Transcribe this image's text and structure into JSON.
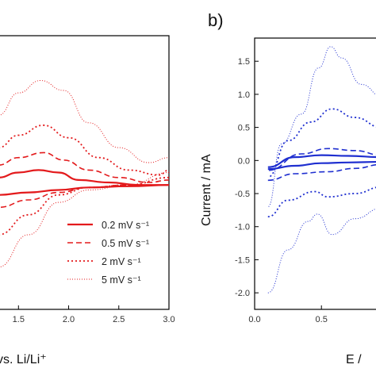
{
  "figure": {
    "panel_b_label": "b)"
  },
  "chart_data": [
    {
      "type": "line",
      "panel": "a",
      "color": "#e31a1c",
      "xlabel_visible_fragment": "vs. Li/Li⁺",
      "xlim": [
        1.3,
        3.0
      ],
      "ylim": [
        -0.5,
        0.6
      ],
      "x_ticks": [
        "1.5",
        "2.0",
        "2.5",
        "3.0"
      ],
      "legend": {
        "placement": "bottom-right",
        "entries": [
          {
            "label": "0.2 mV s⁻¹",
            "style": "solid"
          },
          {
            "label": "0.5 mV s⁻¹",
            "style": "dashed"
          },
          {
            "label": "2 mV s⁻¹",
            "style": "dotted"
          },
          {
            "label": "5 mV s⁻¹",
            "style": "fine-dotted"
          }
        ]
      },
      "series": [
        {
          "name": "0.2 mV s⁻¹",
          "style": "solid",
          "x": [
            1.3,
            1.5,
            1.7,
            1.9,
            2.1,
            2.4,
            2.7,
            3.0
          ],
          "y": [
            0.03,
            0.05,
            0.06,
            0.05,
            0.02,
            0.01,
            0.0,
            0.0
          ]
        },
        {
          "name": "0.2 mV s⁻¹ (return)",
          "style": "solid",
          "x": [
            3.0,
            2.6,
            2.2,
            1.9,
            1.6,
            1.3
          ],
          "y": [
            0.0,
            -0.005,
            -0.01,
            -0.02,
            -0.03,
            -0.04
          ]
        },
        {
          "name": "0.5 mV s⁻¹",
          "style": "dashed",
          "x": [
            1.3,
            1.5,
            1.75,
            1.95,
            2.2,
            2.5,
            2.8,
            3.0
          ],
          "y": [
            0.08,
            0.11,
            0.13,
            0.1,
            0.06,
            0.03,
            0.01,
            0.02
          ]
        },
        {
          "name": "0.5 mV s⁻¹ (return)",
          "style": "dashed",
          "x": [
            3.0,
            2.6,
            2.2,
            1.9,
            1.6,
            1.3
          ],
          "y": [
            0.0,
            0.0,
            -0.01,
            -0.03,
            -0.06,
            -0.09
          ]
        },
        {
          "name": "2 mV s⁻¹",
          "style": "dotted",
          "x": [
            1.3,
            1.5,
            1.75,
            2.0,
            2.3,
            2.6,
            2.9,
            3.0
          ],
          "y": [
            0.15,
            0.2,
            0.24,
            0.19,
            0.11,
            0.06,
            0.04,
            0.06
          ]
        },
        {
          "name": "2 mV s⁻¹ (return)",
          "style": "dotted",
          "x": [
            3.0,
            2.6,
            2.2,
            1.9,
            1.6,
            1.3
          ],
          "y": [
            0.03,
            0.0,
            -0.01,
            -0.04,
            -0.12,
            -0.2
          ]
        },
        {
          "name": "5 mV s⁻¹",
          "style": "fine-dotted",
          "x": [
            1.3,
            1.5,
            1.72,
            1.95,
            2.2,
            2.5,
            2.8,
            3.0
          ],
          "y": [
            0.28,
            0.37,
            0.42,
            0.38,
            0.25,
            0.15,
            0.09,
            0.11
          ]
        },
        {
          "name": "5 mV s⁻¹ (return)",
          "style": "fine-dotted",
          "x": [
            3.0,
            2.6,
            2.2,
            1.9,
            1.6,
            1.3
          ],
          "y": [
            0.05,
            0.0,
            -0.02,
            -0.07,
            -0.2,
            -0.33
          ]
        }
      ]
    },
    {
      "type": "line",
      "panel": "b",
      "color": "#1f2fd0",
      "ylabel": "Current  / mA",
      "xlabel_visible_fragment": "E /",
      "xlim": [
        0.0,
        0.95
      ],
      "ylim": [
        -2.25,
        1.85
      ],
      "x_ticks": [
        "0.0",
        "0.5"
      ],
      "y_ticks": [
        "1.5",
        "1.0",
        "0.5",
        "0.0",
        "-0.5",
        "-1.0",
        "-1.5",
        "-2.0"
      ],
      "series": [
        {
          "name": "solid",
          "style": "solid",
          "x": [
            0.1,
            0.3,
            0.5,
            0.7,
            0.95
          ],
          "y": [
            -0.13,
            -0.08,
            -0.04,
            -0.03,
            -0.02
          ]
        },
        {
          "name": "solid (return)",
          "style": "solid",
          "x": [
            0.95,
            0.7,
            0.5,
            0.3,
            0.1
          ],
          "y": [
            0.05,
            0.07,
            0.08,
            0.05,
            -0.1
          ]
        },
        {
          "name": "dashed",
          "style": "dashed",
          "x": [
            0.1,
            0.3,
            0.55,
            0.75,
            0.95
          ],
          "y": [
            -0.3,
            -0.2,
            -0.17,
            -0.12,
            -0.06
          ]
        },
        {
          "name": "dashed (return)",
          "style": "dashed",
          "x": [
            0.95,
            0.75,
            0.55,
            0.35,
            0.1
          ],
          "y": [
            0.08,
            0.15,
            0.18,
            0.1,
            -0.15
          ]
        },
        {
          "name": "dotted",
          "style": "dotted",
          "x": [
            0.1,
            0.25,
            0.45,
            0.55,
            0.75,
            0.95
          ],
          "y": [
            -0.85,
            -0.6,
            -0.47,
            -0.55,
            -0.5,
            -0.4
          ]
        },
        {
          "name": "dotted (return)",
          "style": "dotted",
          "x": [
            0.95,
            0.75,
            0.58,
            0.42,
            0.25,
            0.1
          ],
          "y": [
            0.5,
            0.65,
            0.78,
            0.58,
            0.3,
            -0.25
          ]
        },
        {
          "name": "fine-dotted",
          "style": "fine-dotted",
          "x": [
            0.1,
            0.25,
            0.4,
            0.47,
            0.58,
            0.75,
            0.95
          ],
          "y": [
            -2.0,
            -1.35,
            -0.92,
            -0.81,
            -1.12,
            -0.88,
            -0.72
          ]
        },
        {
          "name": "fine-dotted (return)",
          "style": "fine-dotted",
          "x": [
            0.95,
            0.8,
            0.65,
            0.57,
            0.48,
            0.35,
            0.2,
            0.1
          ],
          "y": [
            0.97,
            1.15,
            1.55,
            1.72,
            1.4,
            0.7,
            0.25,
            -0.7
          ]
        }
      ]
    }
  ]
}
